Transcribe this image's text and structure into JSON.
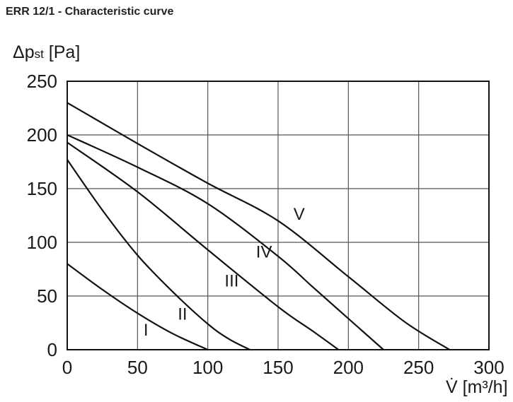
{
  "header": {
    "title": "ERR 12/1 - Characteristic curve"
  },
  "chart_data": {
    "type": "line",
    "title": "ERR 12/1 - Characteristic curve",
    "ylabel": {
      "main": "Δp",
      "sub": "st",
      "unit": " [Pa]"
    },
    "xlabel": {
      "main": "V̇",
      "unit": " [m³/h]"
    },
    "xlim": [
      0,
      300
    ],
    "ylim": [
      0,
      250
    ],
    "xticks": [
      0,
      50,
      100,
      150,
      200,
      250,
      300
    ],
    "yticks": [
      0,
      50,
      100,
      150,
      200,
      250
    ],
    "grid": true,
    "colors": {
      "line": "#111111",
      "grid": "#555555"
    },
    "series": [
      {
        "name": "I",
        "label_at": [
          56,
          13
        ],
        "points": [
          [
            0,
            80
          ],
          [
            25,
            56
          ],
          [
            50,
            34
          ],
          [
            75,
            15
          ],
          [
            100,
            0
          ]
        ]
      },
      {
        "name": "II",
        "label_at": [
          82,
          28
        ],
        "points": [
          [
            0,
            177
          ],
          [
            25,
            130
          ],
          [
            50,
            88
          ],
          [
            75,
            54
          ],
          [
            100,
            24
          ],
          [
            115,
            10
          ],
          [
            130,
            0
          ]
        ]
      },
      {
        "name": "III",
        "label_at": [
          117,
          59
        ],
        "points": [
          [
            0,
            193
          ],
          [
            50,
            147
          ],
          [
            100,
            93
          ],
          [
            150,
            40
          ],
          [
            175,
            17
          ],
          [
            193,
            0
          ]
        ]
      },
      {
        "name": "IV",
        "label_at": [
          140,
          86
        ],
        "points": [
          [
            0,
            200
          ],
          [
            50,
            170
          ],
          [
            100,
            136
          ],
          [
            150,
            87
          ],
          [
            175,
            58
          ],
          [
            200,
            29
          ],
          [
            225,
            0
          ]
        ]
      },
      {
        "name": "V",
        "label_at": [
          165,
          121
        ],
        "points": [
          [
            0,
            230
          ],
          [
            50,
            192
          ],
          [
            100,
            155
          ],
          [
            150,
            120
          ],
          [
            200,
            68
          ],
          [
            240,
            26
          ],
          [
            272,
            0
          ]
        ]
      }
    ]
  }
}
